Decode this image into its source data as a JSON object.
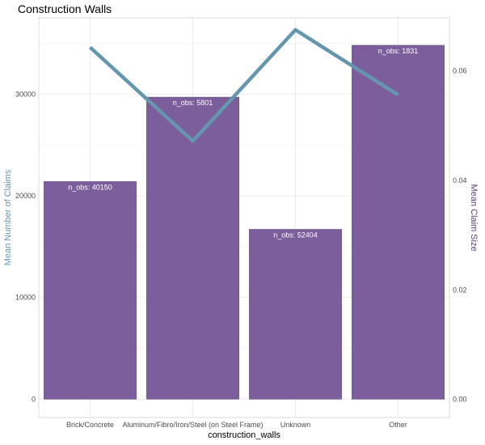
{
  "chart_data": {
    "type": "bar",
    "title": "Construction Walls",
    "xlabel": "construction_walls",
    "ylabel": "Mean Number of Claims",
    "y2label": "Mean Claim Size",
    "categories": [
      "Brick/Concrete",
      "Aluminum/Fibro/Iron/Steel (on Steel Frame)",
      "Unknown",
      "Other"
    ],
    "bar_labels": [
      "n_obs: 40150",
      "n_obs:  5801",
      "n_obs: 52404",
      "n_obs:  1831"
    ],
    "series": [
      {
        "axis": "left",
        "kind": "bar",
        "values": [
          21400,
          29700,
          16700,
          34800
        ]
      },
      {
        "axis": "right",
        "kind": "line",
        "values": [
          0.0643,
          0.0472,
          0.0675,
          0.0556
        ]
      }
    ],
    "ylim": [
      -1800,
      37500
    ],
    "y_ticks": [
      0,
      10000,
      20000,
      30000
    ],
    "y2lim": [
      -0.0033,
      0.0697
    ],
    "y2_ticks": [
      "0.00",
      "0.02",
      "0.04",
      "0.06"
    ],
    "y2_tick_values": [
      0.0,
      0.02,
      0.04,
      0.06
    ],
    "grid": true,
    "colors": {
      "bar": "#7b5e9b",
      "line": "#6497ad",
      "left_axis_title": "#6497ad",
      "right_axis_title": "#5a3d7a"
    }
  }
}
